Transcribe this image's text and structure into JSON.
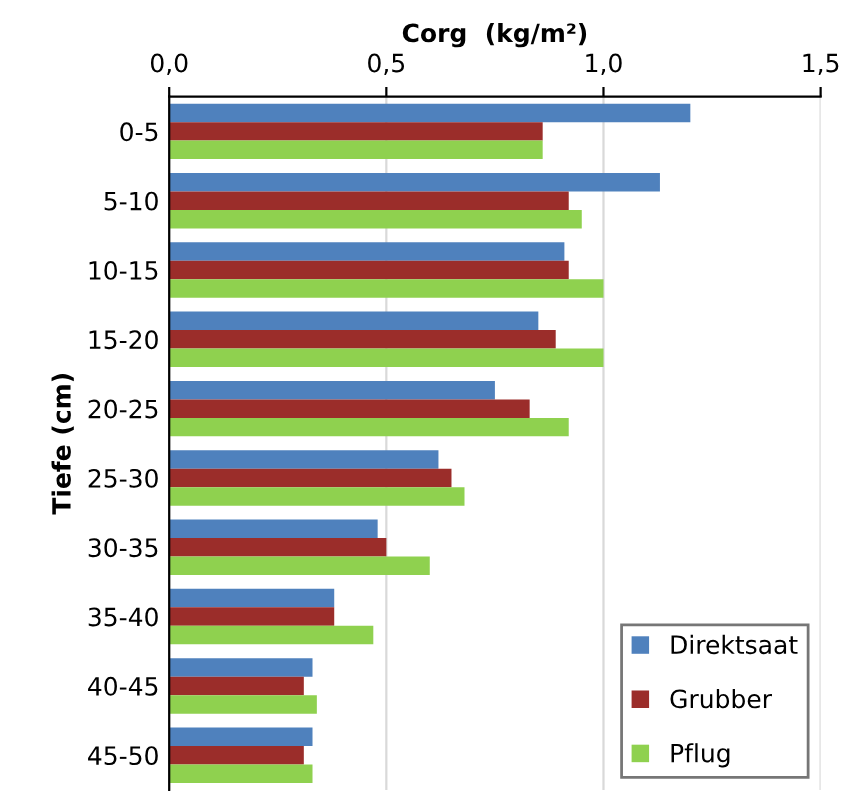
{
  "chart_data": {
    "type": "bar",
    "orientation": "horizontal",
    "xlabel": "Corg  (kg/m²)",
    "ylabel": "Tiefe (cm)",
    "categories": [
      "0-5",
      "5-10",
      "10-15",
      "15-20",
      "20-25",
      "25-30",
      "30-35",
      "35-40",
      "40-45",
      "45-50"
    ],
    "series": [
      {
        "name": "Direktsaat",
        "color": "#4f81bd",
        "values": [
          1.2,
          1.13,
          0.91,
          0.85,
          0.75,
          0.62,
          0.48,
          0.38,
          0.33,
          0.33
        ]
      },
      {
        "name": "Grubber",
        "color": "#9b2d2a",
        "values": [
          0.86,
          0.92,
          0.92,
          0.89,
          0.83,
          0.65,
          0.5,
          0.38,
          0.31,
          0.31
        ]
      },
      {
        "name": "Pflug",
        "color": "#8fd14f",
        "values": [
          0.86,
          0.95,
          1.0,
          1.0,
          0.92,
          0.68,
          0.6,
          0.47,
          0.34,
          0.33
        ]
      }
    ],
    "xlim": [
      0,
      1.5
    ],
    "xticks": [
      {
        "value": 0,
        "label": "0,0"
      },
      {
        "value": 0.5,
        "label": "0,5"
      },
      {
        "value": 1.0,
        "label": "1,0"
      },
      {
        "value": 1.5,
        "label": "1,5"
      }
    ],
    "grid": "x",
    "legend": "bottom right"
  }
}
